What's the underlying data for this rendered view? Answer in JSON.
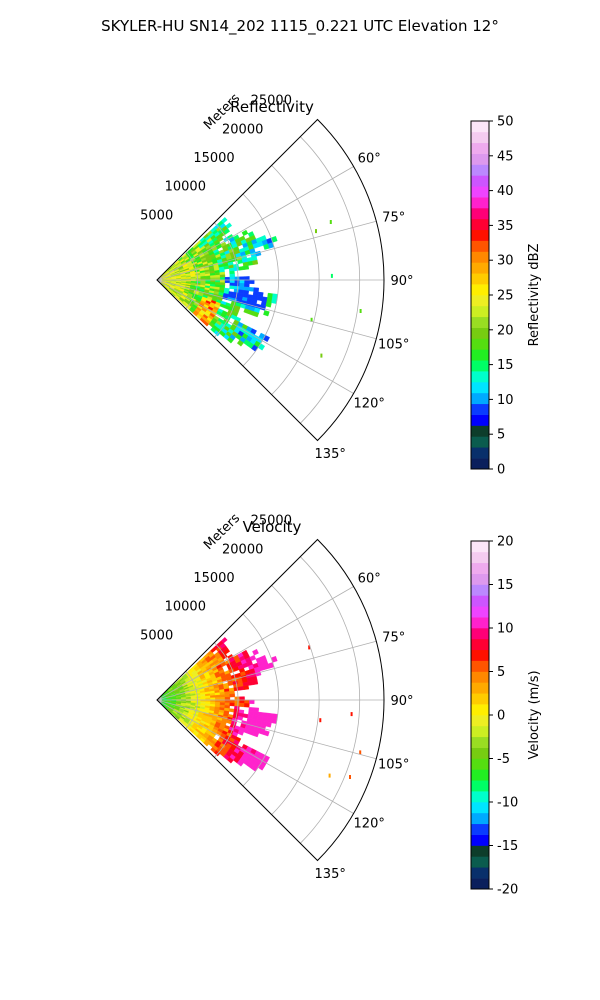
{
  "figure_title": "SKYLER-HU  SN14_202  1115_0.221 UTC Elevation 12°",
  "chart_data": [
    {
      "type": "heatmap",
      "projection": "polar-sector",
      "title": "Reflectivity",
      "radial_label": "Meters",
      "r_ticks": [
        5000,
        10000,
        15000,
        20000,
        25000
      ],
      "r_max": 25000,
      "theta_range_deg": [
        45,
        135
      ],
      "theta_ticks": [
        "60°",
        "75°",
        "90°",
        "105°",
        "120°",
        "135°"
      ],
      "colorbar": {
        "label": "Reflectivity dBZ",
        "range": [
          0,
          50
        ],
        "ticks": [
          "0",
          "5",
          "10",
          "15",
          "20",
          "25",
          "30",
          "35",
          "40",
          "45",
          "50"
        ],
        "colors": [
          "#0a1f5c",
          "#08306b",
          "#0a5c4e",
          "#0d3d2b",
          "#0000ff",
          "#0a3cff",
          "#00aaff",
          "#00e5ff",
          "#00ffcc",
          "#00ff66",
          "#22ee22",
          "#55dd11",
          "#77cc11",
          "#99dd22",
          "#ccee22",
          "#eeee22",
          "#ffee00",
          "#ffcc00",
          "#ffaa00",
          "#ff8800",
          "#ff5500",
          "#ff1100",
          "#ff0033",
          "#ff0077",
          "#ff22cc",
          "#ee44ff",
          "#cc55ff",
          "#bb88ff",
          "#dd99ee",
          "#eeaaee",
          "#f4ccf0",
          "#fbe6f8"
        ]
      }
    },
    {
      "type": "heatmap",
      "projection": "polar-sector",
      "title": "Velocity",
      "radial_label": "Meters",
      "r_ticks": [
        5000,
        10000,
        15000,
        20000,
        25000
      ],
      "r_max": 25000,
      "theta_range_deg": [
        45,
        135
      ],
      "theta_ticks": [
        "60°",
        "75°",
        "90°",
        "105°",
        "120°",
        "135°"
      ],
      "colorbar": {
        "label": "Velocity (m/s)",
        "range": [
          -20,
          20
        ],
        "ticks": [
          "-20",
          "-15",
          "-10",
          "-5",
          "0",
          "5",
          "10",
          "15",
          "20"
        ],
        "colors": [
          "#0a1f5c",
          "#08306b",
          "#0a5c4e",
          "#0d3d2b",
          "#0000ff",
          "#0a3cff",
          "#00aaff",
          "#00e5ff",
          "#00ffcc",
          "#00ff66",
          "#22ee22",
          "#55dd11",
          "#77cc11",
          "#99dd22",
          "#ccee22",
          "#eeee22",
          "#ffee00",
          "#ffcc00",
          "#ffaa00",
          "#ff8800",
          "#ff5500",
          "#ff1100",
          "#ff0033",
          "#ff0077",
          "#ff22cc",
          "#ee44ff",
          "#cc55ff",
          "#bb88ff",
          "#dd99ee",
          "#eeaaee",
          "#f4ccf0",
          "#fbe6f8"
        ]
      }
    }
  ]
}
